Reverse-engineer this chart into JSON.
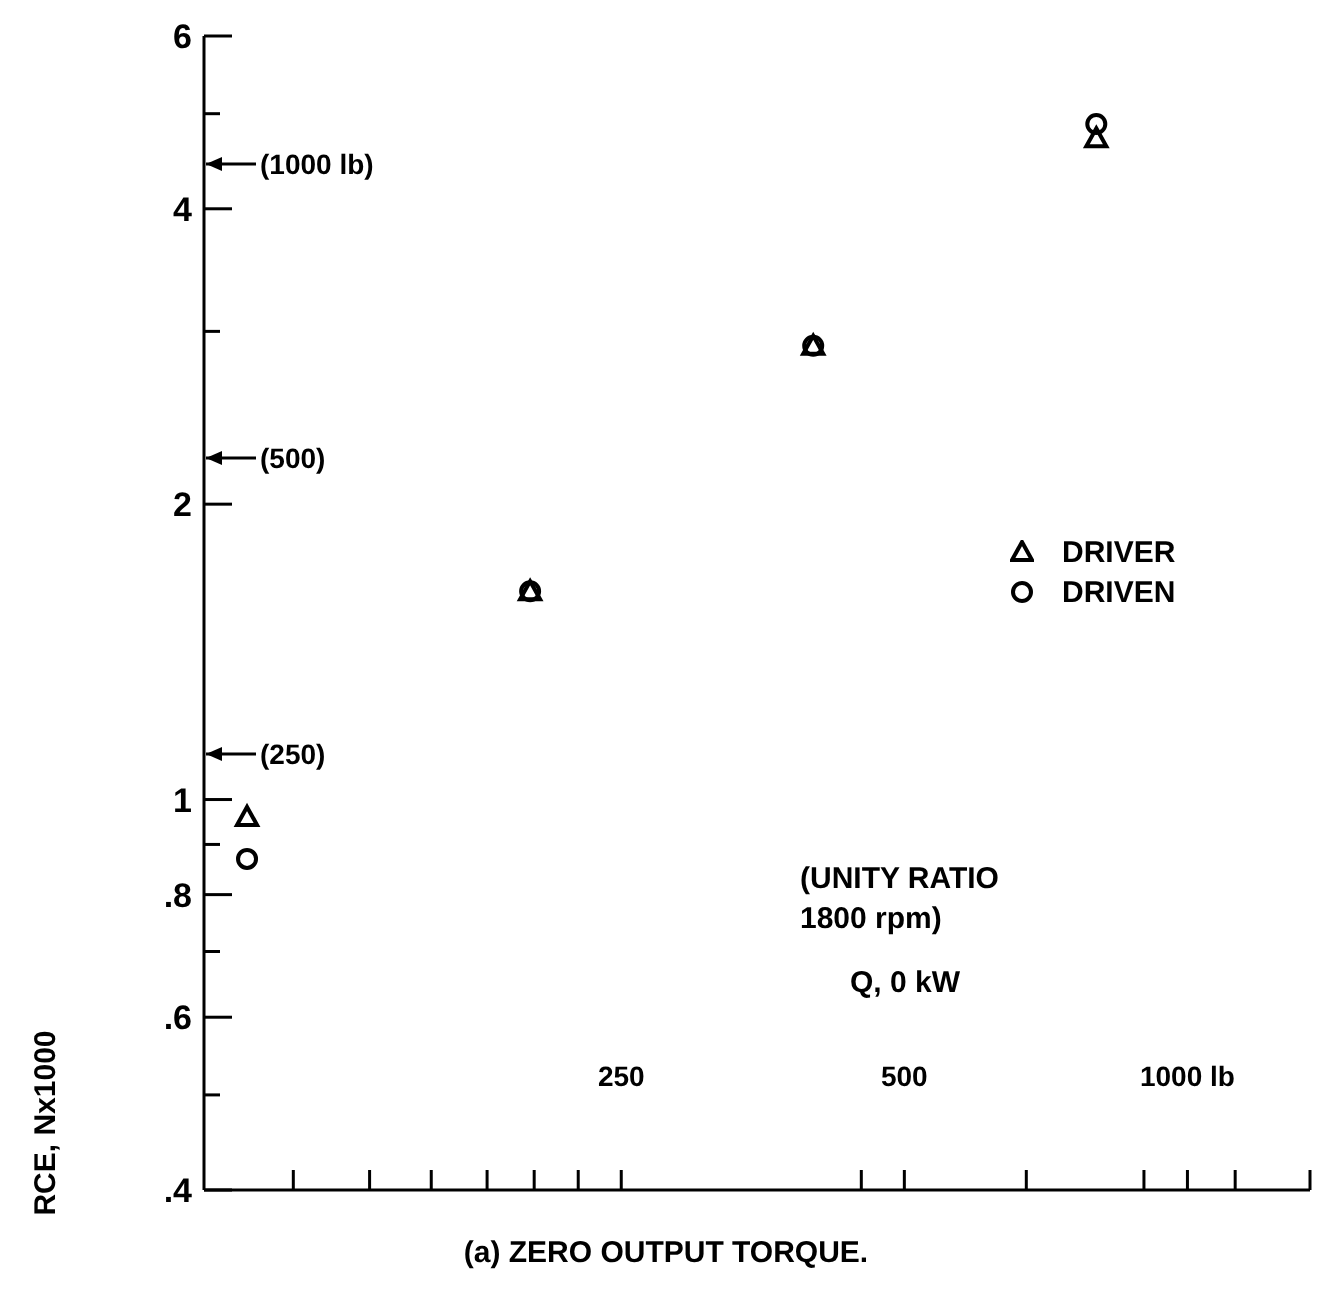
{
  "chart_data": {
    "type": "scatter",
    "title": "(a) ZERO OUTPUT TORQUE.",
    "ylabel": "RCE, Nx1000",
    "log": "xy",
    "grid": false,
    "legend": "right",
    "xlim": [
      90,
      1350
    ],
    "ylim": [
      0.4,
      6
    ],
    "xticks": [
      {
        "value": 112,
        "label": null
      },
      {
        "value": 135,
        "label": null
      },
      {
        "value": 157,
        "label": null
      },
      {
        "value": 180,
        "label": null
      },
      {
        "value": 202,
        "label": null
      },
      {
        "value": 225,
        "label": null
      },
      250,
      {
        "value": 450,
        "label": null
      },
      500,
      {
        "value": 674,
        "label": null
      },
      {
        "value": 899,
        "label": null
      },
      {
        "value": 1000,
        "label": "1000 lb"
      },
      {
        "value": 1124,
        "label": null
      },
      {
        "value": 1350,
        "label": null
      }
    ],
    "yticks": [
      {
        "value": 0.4,
        "label": ".4"
      },
      {
        "value": 0.5,
        "label": null
      },
      {
        "value": 0.6,
        "label": ".6"
      },
      {
        "value": 0.7,
        "label": null
      },
      {
        "value": 0.8,
        "label": ".8"
      },
      {
        "value": 0.9,
        "label": null
      },
      1,
      2,
      {
        "value": 3,
        "label": null
      },
      4,
      {
        "value": 5,
        "label": null
      },
      6
    ],
    "series": [
      {
        "name": "DRIVER",
        "color": "#000000",
        "marker": "triangle",
        "x": [
          100,
          200,
          400,
          800
        ],
        "values": [
          0.96,
          1.63,
          2.9,
          4.72
        ]
      },
      {
        "name": "DRIVEN",
        "color": "#000000",
        "marker": "circle",
        "x": [
          100,
          200,
          400,
          800
        ],
        "values": [
          0.87,
          1.63,
          2.9,
          4.88
        ]
      }
    ],
    "annotations": [
      "(1000 lb)",
      "(500)",
      "(250)",
      "(UNITY RATIO\n1800 rpm)",
      "Q, 0 kW"
    ]
  }
}
